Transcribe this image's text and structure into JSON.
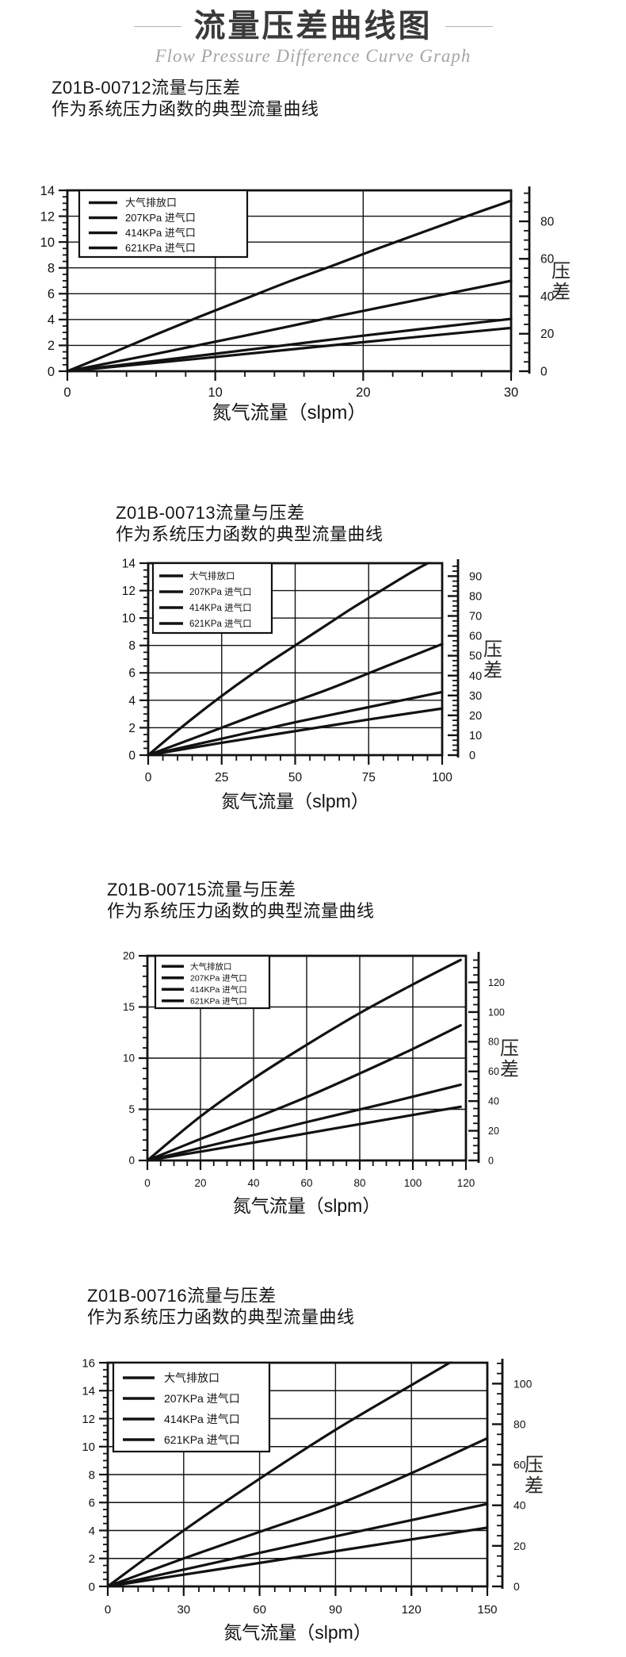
{
  "page": {
    "title": "流量压差曲线图",
    "subtitle": "Flow Pressure Difference Curve Graph"
  },
  "charts": [
    {
      "title": "Z01B-00712流量与压差",
      "subtitle": "作为系统压力函数的典型流量曲线",
      "chart_data": {
        "type": "line",
        "xlabel": "氮气流量（slpm）",
        "right_axis_label": "压差",
        "x_range": [
          0,
          30
        ],
        "x_ticks": [
          0,
          10,
          20,
          30
        ],
        "x_minor_step": 2,
        "yleft_range": [
          0,
          14
        ],
        "yleft_ticks": [
          0,
          2,
          4,
          6,
          8,
          10,
          12,
          14
        ],
        "yleft_minor_step": 0.5,
        "yright_ticks": [
          0,
          20,
          40,
          60,
          80
        ],
        "yright_minor_step": 5,
        "yright_per_left_unit": 6.895,
        "grid": true,
        "legend_position": "top-left",
        "series": [
          {
            "name": "大气排放口",
            "points": [
              [
                0,
                0
              ],
              [
                3,
                1.4
              ],
              [
                6,
                2.85
              ],
              [
                9,
                4.25
              ],
              [
                12,
                5.6
              ],
              [
                15,
                6.95
              ],
              [
                18,
                8.2
              ],
              [
                21,
                9.5
              ],
              [
                24,
                10.75
              ],
              [
                27,
                12.0
              ],
              [
                30,
                13.2
              ]
            ]
          },
          {
            "name": "207KPa 进气口",
            "points": [
              [
                0,
                0
              ],
              [
                6,
                1.35
              ],
              [
                12,
                2.75
              ],
              [
                18,
                4.2
              ],
              [
                24,
                5.6
              ],
              [
                30,
                7.0
              ]
            ]
          },
          {
            "name": "414KPa 进气口",
            "points": [
              [
                0,
                0
              ],
              [
                10,
                1.35
              ],
              [
                20,
                2.75
              ],
              [
                30,
                4.05
              ]
            ]
          },
          {
            "name": "621KPa 进气口",
            "points": [
              [
                0,
                0
              ],
              [
                10,
                1.1
              ],
              [
                20,
                2.25
              ],
              [
                30,
                3.35
              ]
            ]
          }
        ]
      }
    },
    {
      "title": "Z01B-00713流量与压差",
      "subtitle": "作为系统压力函数的典型流量曲线",
      "chart_data": {
        "type": "line",
        "xlabel": "氮气流量（slpm）",
        "right_axis_label": "压差",
        "x_range": [
          0,
          100
        ],
        "x_ticks": [
          0,
          25,
          50,
          75,
          100
        ],
        "x_minor_step": 5,
        "yleft_range": [
          0,
          14
        ],
        "yleft_ticks": [
          0,
          2,
          4,
          6,
          8,
          10,
          12,
          14
        ],
        "yleft_minor_step": 0.5,
        "yright_ticks": [
          0,
          10,
          20,
          30,
          40,
          50,
          60,
          70,
          80,
          90
        ],
        "yright_minor_step": 2.5,
        "yright_per_left_unit": 6.895,
        "grid": true,
        "legend_position": "top-left",
        "series": [
          {
            "name": "大气排放口",
            "points": [
              [
                0,
                0
              ],
              [
                10,
                1.8
              ],
              [
                20,
                3.5
              ],
              [
                30,
                5.1
              ],
              [
                40,
                6.6
              ],
              [
                50,
                8.0
              ],
              [
                60,
                9.4
              ],
              [
                70,
                10.8
              ],
              [
                80,
                12.1
              ],
              [
                90,
                13.4
              ],
              [
                96,
                14.1
              ]
            ]
          },
          {
            "name": "207KPa 进气口",
            "points": [
              [
                0,
                0
              ],
              [
                20,
                1.6
              ],
              [
                40,
                3.2
              ],
              [
                60,
                4.7
              ],
              [
                80,
                6.4
              ],
              [
                100,
                8.1
              ]
            ]
          },
          {
            "name": "414KPa 进气口",
            "points": [
              [
                0,
                0
              ],
              [
                25,
                1.2
              ],
              [
                50,
                2.4
              ],
              [
                75,
                3.5
              ],
              [
                100,
                4.6
              ]
            ]
          },
          {
            "name": "621KPa 进气口",
            "points": [
              [
                0,
                0
              ],
              [
                25,
                0.9
              ],
              [
                50,
                1.75
              ],
              [
                75,
                2.6
              ],
              [
                100,
                3.4
              ]
            ]
          }
        ]
      }
    },
    {
      "title": "Z01B-00715流量与压差",
      "subtitle": "作为系统压力函数的典型流量曲线",
      "chart_data": {
        "type": "line",
        "xlabel": "氮气流量（slpm）",
        "right_axis_label": "压差",
        "x_range": [
          0,
          120
        ],
        "x_ticks": [
          0,
          20,
          40,
          60,
          80,
          100,
          120
        ],
        "x_minor_step": 5,
        "yleft_range": [
          0,
          20
        ],
        "yleft_ticks": [
          0,
          5,
          10,
          15,
          20
        ],
        "yleft_minor_step": 1,
        "yright_ticks": [
          0,
          20,
          40,
          60,
          80,
          100,
          120
        ],
        "yright_minor_step": 5,
        "yright_per_left_unit": 6.895,
        "grid": true,
        "legend_position": "top-left",
        "series": [
          {
            "name": "大气排放口",
            "points": [
              [
                0,
                0
              ],
              [
                20,
                4.3
              ],
              [
                40,
                8.0
              ],
              [
                60,
                11.3
              ],
              [
                80,
                14.4
              ],
              [
                100,
                17.2
              ],
              [
                118,
                19.6
              ]
            ]
          },
          {
            "name": "207KPa 进气口",
            "points": [
              [
                0,
                0
              ],
              [
                20,
                2.1
              ],
              [
                40,
                4.1
              ],
              [
                60,
                6.2
              ],
              [
                80,
                8.5
              ],
              [
                100,
                10.9
              ],
              [
                118,
                13.2
              ]
            ]
          },
          {
            "name": "414KPa 进气口",
            "points": [
              [
                0,
                0
              ],
              [
                30,
                1.85
              ],
              [
                60,
                3.75
              ],
              [
                90,
                5.6
              ],
              [
                118,
                7.4
              ]
            ]
          },
          {
            "name": "621KPa 进气口",
            "points": [
              [
                0,
                0
              ],
              [
                30,
                1.3
              ],
              [
                60,
                2.65
              ],
              [
                90,
                4.0
              ],
              [
                118,
                5.25
              ]
            ]
          }
        ]
      }
    },
    {
      "title": "Z01B-00716流量与压差",
      "subtitle": "作为系统压力函数的典型流量曲线",
      "chart_data": {
        "type": "line",
        "xlabel": "氮气流量（slpm）",
        "right_axis_label": "压差",
        "x_range": [
          0,
          150
        ],
        "x_ticks": [
          0,
          30,
          60,
          90,
          120,
          150
        ],
        "x_minor_step": 6,
        "yleft_range": [
          0,
          16
        ],
        "yleft_ticks": [
          0,
          2,
          4,
          6,
          8,
          10,
          12,
          14,
          16
        ],
        "yleft_minor_step": 0.5,
        "yright_ticks": [
          0,
          20,
          40,
          60,
          80,
          100
        ],
        "yright_minor_step": 5,
        "yright_per_left_unit": 6.895,
        "grid": true,
        "legend_position": "top-left",
        "series": [
          {
            "name": "大气排放口",
            "points": [
              [
                0,
                0
              ],
              [
                30,
                4.0
              ],
              [
                60,
                7.7
              ],
              [
                90,
                11.2
              ],
              [
                120,
                14.4
              ],
              [
                137,
                16.2
              ]
            ]
          },
          {
            "name": "207KPa 进气口",
            "points": [
              [
                0,
                0
              ],
              [
                30,
                2.0
              ],
              [
                60,
                3.9
              ],
              [
                90,
                5.8
              ],
              [
                120,
                8.1
              ],
              [
                150,
                10.6
              ]
            ]
          },
          {
            "name": "414KPa 进气口",
            "points": [
              [
                0,
                0
              ],
              [
                37.5,
                1.5
              ],
              [
                75,
                3.0
              ],
              [
                112.5,
                4.45
              ],
              [
                150,
                5.9
              ]
            ]
          },
          {
            "name": "621KPa 进气口",
            "points": [
              [
                0,
                0
              ],
              [
                37.5,
                1.05
              ],
              [
                75,
                2.1
              ],
              [
                112.5,
                3.15
              ],
              [
                150,
                4.2
              ]
            ]
          }
        ]
      }
    }
  ]
}
